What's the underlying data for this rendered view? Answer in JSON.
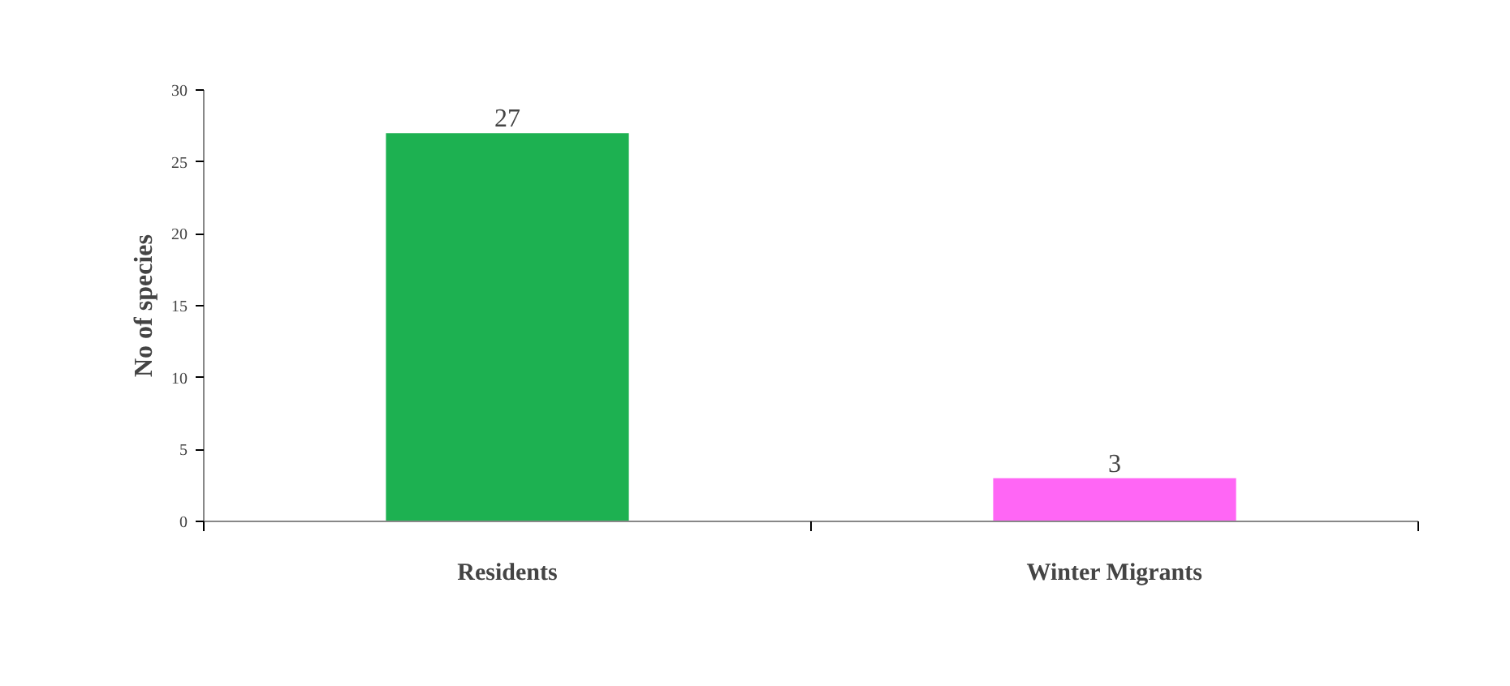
{
  "chart_data": {
    "type": "bar",
    "ylabel": "No of species",
    "categories": [
      "Residents",
      "Winter Migrants"
    ],
    "values": [
      27,
      3
    ],
    "colors": [
      "#1db151",
      "#ff66f5"
    ],
    "ylim": [
      0,
      30
    ],
    "yticks": [
      0,
      5,
      10,
      15,
      20,
      25,
      30
    ],
    "data_labels": true,
    "grid": false
  }
}
